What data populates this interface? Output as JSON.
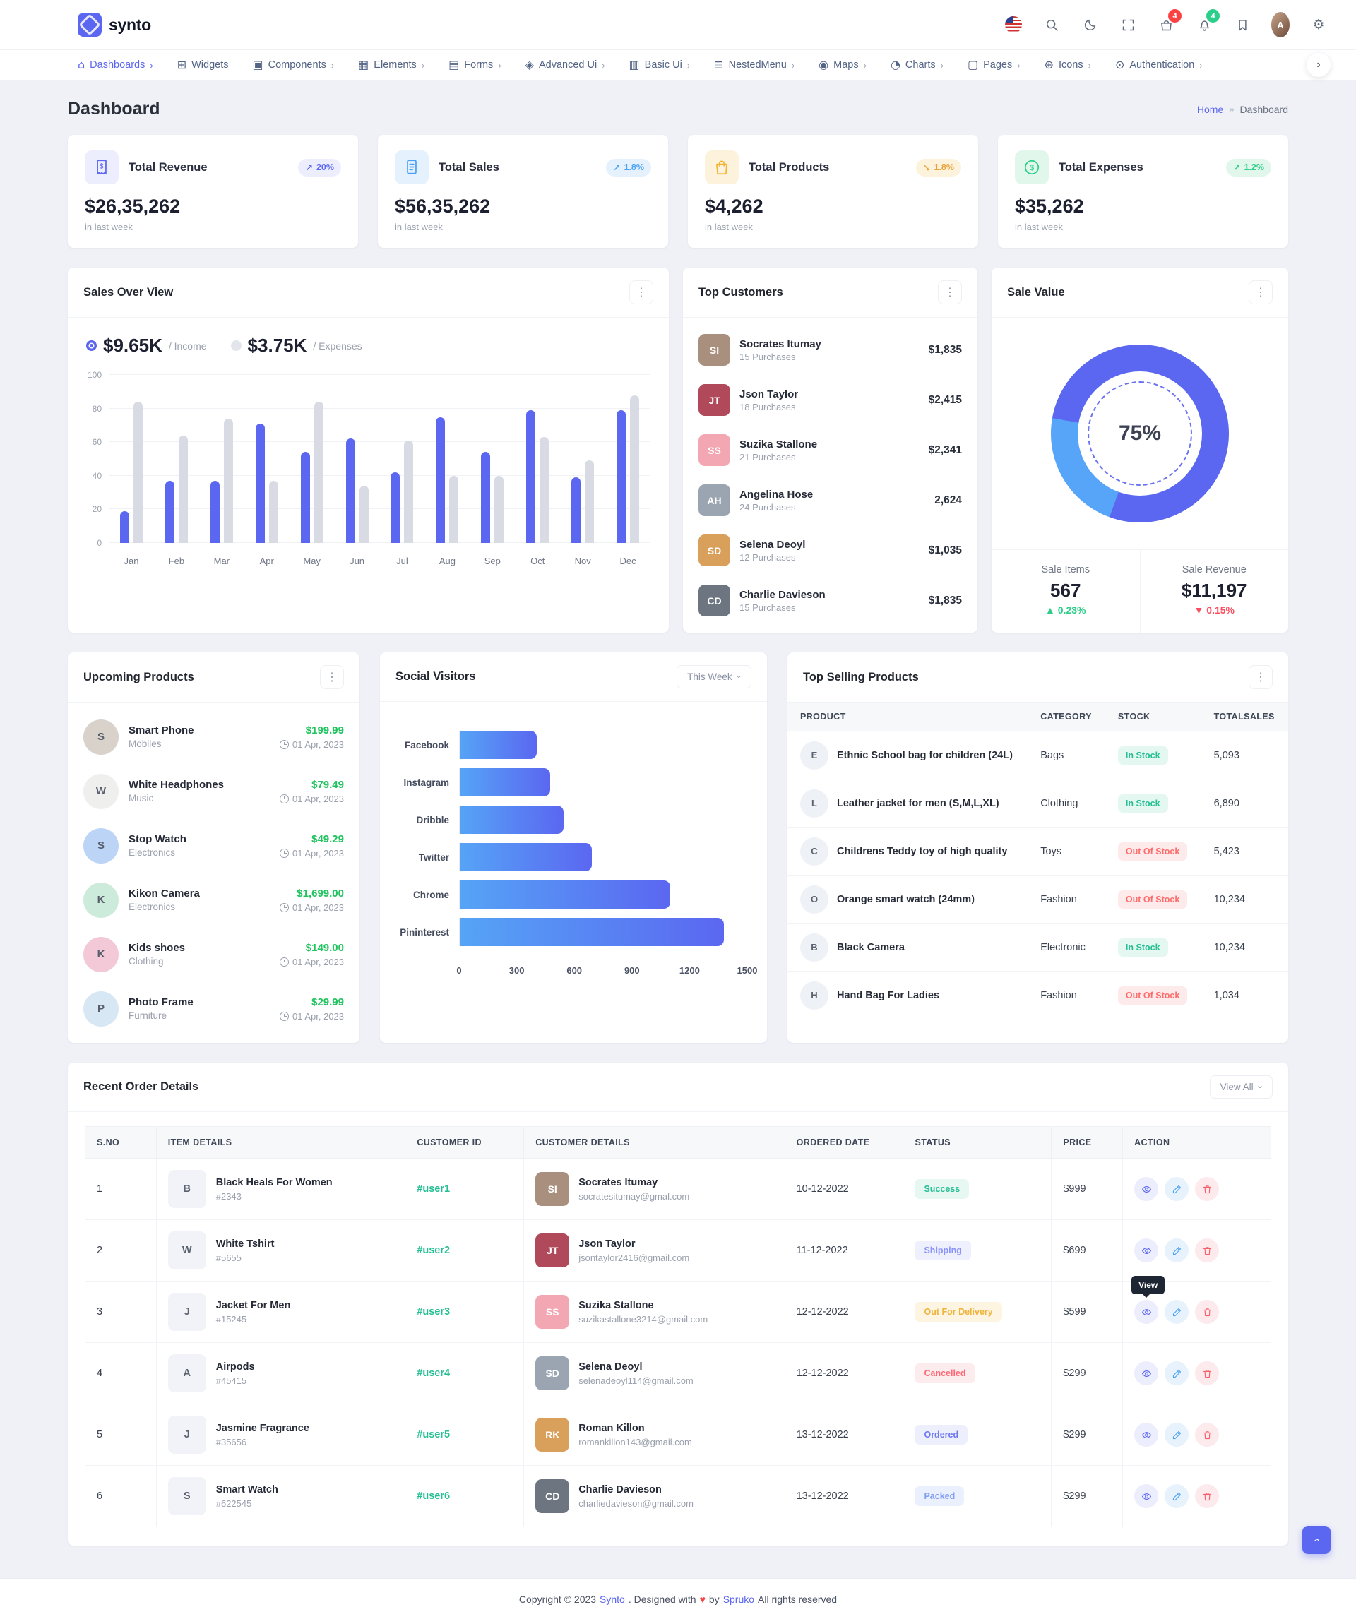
{
  "brand": {
    "name": "synto"
  },
  "header": {
    "icons": [
      {
        "name": "flag-us"
      },
      {
        "name": "search"
      },
      {
        "name": "moon"
      },
      {
        "name": "fullscreen"
      },
      {
        "name": "cart",
        "badge": "4",
        "badge_color": "red"
      },
      {
        "name": "bell",
        "badge": "4",
        "badge_color": "green"
      },
      {
        "name": "bookmark"
      },
      {
        "name": "avatar"
      },
      {
        "name": "gear"
      }
    ]
  },
  "nav": {
    "items": [
      {
        "label": "Dashboards",
        "icon": "home",
        "caret": true,
        "active": true
      },
      {
        "label": "Widgets",
        "icon": "widgets",
        "caret": false,
        "active": false
      },
      {
        "label": "Components",
        "icon": "components",
        "caret": true,
        "active": false
      },
      {
        "label": "Elements",
        "icon": "elements",
        "caret": true,
        "active": false
      },
      {
        "label": "Forms",
        "icon": "forms",
        "caret": true,
        "active": false
      },
      {
        "label": "Advanced Ui",
        "icon": "advanced",
        "caret": true,
        "active": false
      },
      {
        "label": "Basic Ui",
        "icon": "basic",
        "caret": true,
        "active": false
      },
      {
        "label": "NestedMenu",
        "icon": "nested",
        "caret": true,
        "active": false
      },
      {
        "label": "Maps",
        "icon": "maps",
        "caret": true,
        "active": false
      },
      {
        "label": "Charts",
        "icon": "charts",
        "caret": true,
        "active": false
      },
      {
        "label": "Pages",
        "icon": "pages",
        "caret": true,
        "active": false
      },
      {
        "label": "Icons",
        "icon": "icons",
        "caret": true,
        "active": false
      },
      {
        "label": "Authentication",
        "icon": "auth",
        "caret": true,
        "active": false
      }
    ]
  },
  "page": {
    "title": "Dashboard",
    "breadcrumb_home": "Home",
    "breadcrumb_sep": "»",
    "breadcrumb_current": "Dashboard"
  },
  "stats": [
    {
      "title": "Total Revenue",
      "value": "$26,35,262",
      "period": "in last week",
      "change": "20%",
      "trend": "up",
      "theme": "indigo",
      "icon": "receipt-dollar"
    },
    {
      "title": "Total Sales",
      "value": "$56,35,262",
      "period": "in last week",
      "change": "1.8%",
      "trend": "up",
      "theme": "blue",
      "icon": "receipt"
    },
    {
      "title": "Total Products",
      "value": "$4,262",
      "period": "in last week",
      "change": "1.8%",
      "trend": "down",
      "theme": "warning",
      "icon": "shopping-bag"
    },
    {
      "title": "Total Expenses",
      "value": "$35,262",
      "period": "in last week",
      "change": "1.2%",
      "trend": "up",
      "theme": "success",
      "icon": "dollar-circle"
    }
  ],
  "sales_overview": {
    "title": "Sales Over View",
    "legend": [
      {
        "value": "$9.65K",
        "label": "/ Income",
        "key": "income"
      },
      {
        "value": "$3.75K",
        "label": "/ Expenses",
        "key": "expenses"
      }
    ],
    "chart_data": {
      "type": "bar",
      "categories": [
        "Jan",
        "Feb",
        "Mar",
        "Apr",
        "May",
        "Jun",
        "Jul",
        "Aug",
        "Sep",
        "Oct",
        "Nov",
        "Dec"
      ],
      "series": [
        {
          "name": "Income",
          "values": [
            19,
            37,
            37,
            71,
            54,
            62,
            42,
            75,
            54,
            79,
            39,
            79
          ],
          "color": "#5b67f1"
        },
        {
          "name": "Expenses",
          "values": [
            84,
            64,
            74,
            37,
            84,
            34,
            61,
            40,
            40,
            63,
            49,
            88
          ],
          "color": "#d8dbe4"
        }
      ],
      "ylim": [
        0,
        100
      ],
      "yticks": [
        0,
        20,
        40,
        60,
        80,
        100
      ],
      "grid": true,
      "legend_position": "top-left"
    }
  },
  "top_customers": {
    "title": "Top Customers",
    "items": [
      {
        "name": "Socrates Itumay",
        "purchases": "15 Purchases",
        "amount": "$1,835"
      },
      {
        "name": "Json Taylor",
        "purchases": "18 Purchases",
        "amount": "$2,415"
      },
      {
        "name": "Suzika Stallone",
        "purchases": "21 Purchases",
        "amount": "$2,341"
      },
      {
        "name": "Angelina Hose",
        "purchases": "24 Purchases",
        "amount": "2,624"
      },
      {
        "name": "Selena Deoyl",
        "purchases": "12 Purchases",
        "amount": "$1,035"
      },
      {
        "name": "Charlie Davieson",
        "purchases": "15 Purchases",
        "amount": "$1,835"
      }
    ]
  },
  "sale_value": {
    "title": "Sale Value",
    "percent": "75%",
    "donut": {
      "type": "pie",
      "segments": [
        {
          "name": "primary",
          "value": 75
        },
        {
          "name": "secondary",
          "value": 25
        }
      ],
      "colors": {
        "primary": "#5b67f1",
        "secondary": "#57a5f9"
      },
      "arc_degrees": [
        200,
        280
      ]
    },
    "cells": [
      {
        "label": "Sale Items",
        "value": "567",
        "change": "0.23%",
        "trend": "up"
      },
      {
        "label": "Sale Revenue",
        "value": "$11,197",
        "change": "0.15%",
        "trend": "down"
      }
    ]
  },
  "upcoming_products": {
    "title": "Upcoming Products",
    "items": [
      {
        "name": "Smart Phone",
        "category": "Mobiles",
        "price": "$199.99",
        "date": "01 Apr, 2023"
      },
      {
        "name": "White Headphones",
        "category": "Music",
        "price": "$79.49",
        "date": "01 Apr, 2023"
      },
      {
        "name": "Stop Watch",
        "category": "Electronics",
        "price": "$49.29",
        "date": "01 Apr, 2023"
      },
      {
        "name": "Kikon Camera",
        "category": "Electronics",
        "price": "$1,699.00",
        "date": "01 Apr, 2023"
      },
      {
        "name": "Kids shoes",
        "category": "Clothing",
        "price": "$149.00",
        "date": "01 Apr, 2023"
      },
      {
        "name": "Photo Frame",
        "category": "Furniture",
        "price": "$29.99",
        "date": "01 Apr, 2023"
      }
    ]
  },
  "social_visitors": {
    "title": "Social Visitors",
    "range_label": "This Week",
    "chart_data": {
      "type": "bar",
      "orientation": "horizontal",
      "categories": [
        "Facebook",
        "Instagram",
        "Dribble",
        "Twitter",
        "Chrome",
        "Pininterest"
      ],
      "values": [
        400,
        470,
        540,
        690,
        1100,
        1380
      ],
      "xlim": [
        0,
        1500
      ],
      "xticks": [
        0,
        300,
        600,
        900,
        1200,
        1500
      ],
      "bar_gradient": [
        "#55a4f6",
        "#5b67f1"
      ]
    }
  },
  "top_selling": {
    "title": "Top Selling Products",
    "headers": [
      "PRODUCT",
      "CATEGORY",
      "STOCK",
      "TOTALSALES"
    ],
    "rows": [
      {
        "product": "Ethnic School bag for children (24L)",
        "category": "Bags",
        "stock": "In Stock",
        "stock_state": "in",
        "sales": "5,093"
      },
      {
        "product": "Leather jacket for men (S,M,L,XL)",
        "category": "Clothing",
        "stock": "In Stock",
        "stock_state": "in",
        "sales": "6,890"
      },
      {
        "product": "Childrens Teddy toy of high quality",
        "category": "Toys",
        "stock": "Out Of Stock",
        "stock_state": "out",
        "sales": "5,423"
      },
      {
        "product": "Orange smart watch (24mm)",
        "category": "Fashion",
        "stock": "Out Of Stock",
        "stock_state": "out",
        "sales": "10,234"
      },
      {
        "product": "Black Camera",
        "category": "Electronic",
        "stock": "In Stock",
        "stock_state": "in",
        "sales": "10,234"
      },
      {
        "product": "Hand Bag For Ladies",
        "category": "Fashion",
        "stock": "Out Of Stock",
        "stock_state": "out",
        "sales": "1,034"
      }
    ]
  },
  "recent_orders": {
    "title": "Recent Order Details",
    "view_all_label": "View All",
    "headers": [
      "S.NO",
      "ITEM DETAILS",
      "CUSTOMER ID",
      "CUSTOMER DETAILS",
      "ORDERED DATE",
      "STATUS",
      "PRICE",
      "ACTION"
    ],
    "tooltip": {
      "row": 3,
      "label": "View"
    },
    "rows": [
      {
        "sno": "1",
        "item": "Black Heals For Women",
        "code": "#2343",
        "user_id": "#user1",
        "customer": "Socrates Itumay",
        "email": "socratesitumay@gmal.com",
        "date": "10-12-2022",
        "status": "Success",
        "status_theme": "st-success",
        "price": "$999"
      },
      {
        "sno": "2",
        "item": "White Tshirt",
        "code": "#5655",
        "user_id": "#user2",
        "customer": "Json Taylor",
        "email": "jsontaylor2416@gmail.com",
        "date": "11-12-2022",
        "status": "Shipping",
        "status_theme": "st-shipping",
        "price": "$699"
      },
      {
        "sno": "3",
        "item": "Jacket For Men",
        "code": "#15245",
        "user_id": "#user3",
        "customer": "Suzika Stallone",
        "email": "suzikastallone3214@gmail.com",
        "date": "12-12-2022",
        "status": "Out For Delivery",
        "status_theme": "st-ofd",
        "price": "$599"
      },
      {
        "sno": "4",
        "item": "Airpods",
        "code": "#45415",
        "user_id": "#user4",
        "customer": "Selena Deoyl",
        "email": "selenadeoyl114@gmail.com",
        "date": "12-12-2022",
        "status": "Cancelled",
        "status_theme": "st-cancel",
        "price": "$299"
      },
      {
        "sno": "5",
        "item": "Jasmine Fragrance",
        "code": "#35656",
        "user_id": "#user5",
        "customer": "Roman Killon",
        "email": "romankillon143@gmail.com",
        "date": "13-12-2022",
        "status": "Ordered",
        "status_theme": "st-ordered",
        "price": "$299"
      },
      {
        "sno": "6",
        "item": "Smart Watch",
        "code": "#622545",
        "user_id": "#user6",
        "customer": "Charlie Davieson",
        "email": "charliedavieson@gmail.com",
        "date": "13-12-2022",
        "status": "Packed",
        "status_theme": "st-packed",
        "price": "$299"
      }
    ]
  },
  "footer": {
    "parts": [
      "Copyright © 2023",
      "Synto",
      ". Designed with",
      "♥",
      "by",
      "Spruko",
      "All rights reserved"
    ]
  }
}
